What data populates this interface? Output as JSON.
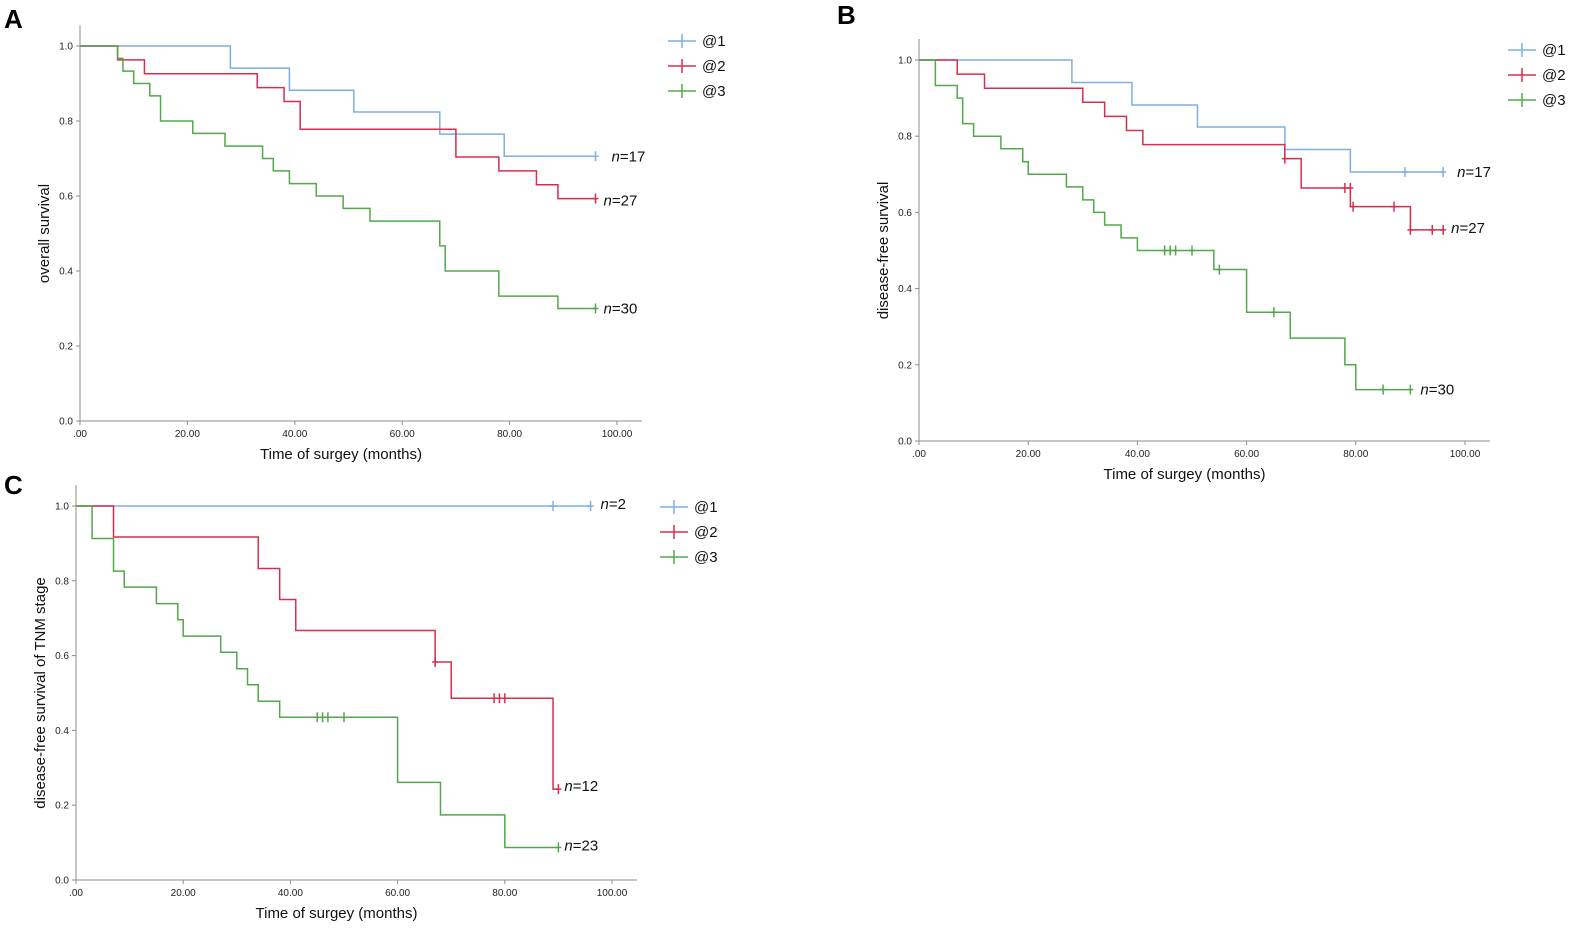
{
  "figure": {
    "colors": {
      "@1": "#7FAEE0",
      "@2": "#D82E4E",
      "@3": "#52A84B",
      "axis": "#8C8C8C"
    },
    "x_tick_labels": [
      ".00",
      "20.00",
      "40.00",
      "60.00",
      "80.00",
      "100.00"
    ],
    "y_tick_labels": [
      "0.0",
      "0.2",
      "0.4",
      "0.6",
      "0.8",
      "1.0"
    ]
  },
  "chart_data": [
    {
      "panel": "A",
      "type": "line",
      "title": "",
      "xlabel": "Time of surgey (months)",
      "ylabel": "overall survival",
      "xlim": [
        0,
        105
      ],
      "ylim": [
        0,
        1.05
      ],
      "legend": [
        "@1",
        "@2",
        "@3"
      ],
      "series": [
        {
          "name": "@1",
          "n_label": "n=17",
          "steps": [
            [
              0,
              1
            ],
            [
              28,
              0.941
            ],
            [
              39,
              0.882
            ],
            [
              51,
              0.824
            ],
            [
              67,
              0.765
            ],
            [
              79,
              0.706
            ],
            [
              96,
              0.706
            ]
          ],
          "censored": [
            [
              96,
              0.706
            ]
          ]
        },
        {
          "name": "@2",
          "n_label": "n=27",
          "steps": [
            [
              0,
              1
            ],
            [
              7,
              0.963
            ],
            [
              12,
              0.926
            ],
            [
              33,
              0.889
            ],
            [
              38,
              0.852
            ],
            [
              41,
              0.778
            ],
            [
              70,
              0.704
            ],
            [
              78,
              0.667
            ],
            [
              85,
              0.63
            ],
            [
              89,
              0.593
            ],
            [
              96,
              0.593
            ]
          ],
          "censored": [
            [
              96,
              0.593
            ]
          ]
        },
        {
          "name": "@3",
          "n_label": "n=30",
          "steps": [
            [
              0,
              1
            ],
            [
              7,
              0.967
            ],
            [
              8,
              0.933
            ],
            [
              10,
              0.9
            ],
            [
              13,
              0.867
            ],
            [
              15,
              0.8
            ],
            [
              21,
              0.767
            ],
            [
              27,
              0.733
            ],
            [
              34,
              0.7
            ],
            [
              36,
              0.667
            ],
            [
              39,
              0.633
            ],
            [
              44,
              0.6
            ],
            [
              49,
              0.567
            ],
            [
              54,
              0.533
            ],
            [
              67,
              0.467
            ],
            [
              68,
              0.4
            ],
            [
              78,
              0.333
            ],
            [
              89,
              0.3
            ],
            [
              96,
              0.3
            ]
          ],
          "censored": [
            [
              96,
              0.3
            ]
          ]
        }
      ]
    },
    {
      "panel": "B",
      "type": "line",
      "title": "",
      "xlabel": "Time of surgey (months)",
      "ylabel": "disease-free survival",
      "xlim": [
        0,
        105
      ],
      "ylim": [
        0,
        1.05
      ],
      "legend": [
        "@1",
        "@2",
        "@3"
      ],
      "series": [
        {
          "name": "@1",
          "n_label": "n=17",
          "steps": [
            [
              0,
              1
            ],
            [
              28,
              0.941
            ],
            [
              39,
              0.882
            ],
            [
              51,
              0.824
            ],
            [
              67,
              0.765
            ],
            [
              79,
              0.706
            ],
            [
              96,
              0.706
            ]
          ],
          "censored": [
            [
              89,
              0.706
            ],
            [
              96,
              0.706
            ]
          ]
        },
        {
          "name": "@2",
          "n_label": "n=27",
          "steps": [
            [
              0,
              1
            ],
            [
              7,
              0.963
            ],
            [
              12,
              0.926
            ],
            [
              30,
              0.889
            ],
            [
              34,
              0.852
            ],
            [
              38,
              0.815
            ],
            [
              41,
              0.778
            ],
            [
              67,
              0.741
            ],
            [
              70,
              0.664
            ],
            [
              79,
              0.615
            ],
            [
              90,
              0.554
            ],
            [
              96,
              0.554
            ]
          ],
          "censored": [
            [
              67,
              0.741
            ],
            [
              78,
              0.664
            ],
            [
              79,
              0.664
            ],
            [
              79.5,
              0.615
            ],
            [
              87,
              0.615
            ],
            [
              90,
              0.554
            ],
            [
              94,
              0.554
            ],
            [
              96,
              0.554
            ]
          ]
        },
        {
          "name": "@3",
          "n_label": "n=30",
          "steps": [
            [
              0,
              1
            ],
            [
              3,
              0.933
            ],
            [
              7,
              0.9
            ],
            [
              8,
              0.833
            ],
            [
              10,
              0.8
            ],
            [
              15,
              0.767
            ],
            [
              19,
              0.733
            ],
            [
              20,
              0.7
            ],
            [
              27,
              0.667
            ],
            [
              30,
              0.633
            ],
            [
              32,
              0.6
            ],
            [
              34,
              0.567
            ],
            [
              37,
              0.533
            ],
            [
              40,
              0.5
            ],
            [
              54,
              0.45
            ],
            [
              60,
              0.338
            ],
            [
              68,
              0.27
            ],
            [
              78,
              0.2
            ],
            [
              80,
              0.135
            ],
            [
              90,
              0.135
            ]
          ],
          "censored": [
            [
              45,
              0.5
            ],
            [
              46,
              0.5
            ],
            [
              47,
              0.5
            ],
            [
              50,
              0.5
            ],
            [
              55,
              0.45
            ],
            [
              65,
              0.338
            ],
            [
              85,
              0.135
            ],
            [
              90,
              0.135
            ]
          ]
        }
      ]
    },
    {
      "panel": "C",
      "type": "line",
      "title": "",
      "xlabel": "Time of surgey (months)",
      "ylabel": "disease-free survival of TNM stage",
      "xlim": [
        0,
        105
      ],
      "ylim": [
        0,
        1.05
      ],
      "legend": [
        "@1",
        "@2",
        "@3"
      ],
      "series": [
        {
          "name": "@1",
          "n_label": "n=2",
          "steps": [
            [
              0,
              1
            ],
            [
              96,
              1
            ]
          ],
          "censored": [
            [
              89,
              1
            ],
            [
              96,
              1
            ]
          ]
        },
        {
          "name": "@2",
          "n_label": "n=12",
          "steps": [
            [
              0,
              1
            ],
            [
              7,
              0.917
            ],
            [
              34,
              0.833
            ],
            [
              38,
              0.75
            ],
            [
              41,
              0.667
            ],
            [
              67,
              0.583
            ],
            [
              70,
              0.486
            ],
            [
              89,
              0.243
            ],
            [
              90,
              0.243
            ]
          ],
          "censored": [
            [
              67,
              0.583
            ],
            [
              78,
              0.486
            ],
            [
              79,
              0.486
            ],
            [
              80,
              0.486
            ],
            [
              90,
              0.243
            ]
          ]
        },
        {
          "name": "@3",
          "n_label": "n=23",
          "steps": [
            [
              0,
              1
            ],
            [
              3,
              0.913
            ],
            [
              7,
              0.826
            ],
            [
              9,
              0.783
            ],
            [
              15,
              0.739
            ],
            [
              19,
              0.696
            ],
            [
              20,
              0.652
            ],
            [
              27,
              0.609
            ],
            [
              30,
              0.565
            ],
            [
              32,
              0.522
            ],
            [
              34,
              0.478
            ],
            [
              38,
              0.435
            ],
            [
              60,
              0.261
            ],
            [
              68,
              0.174
            ],
            [
              80,
              0.087
            ],
            [
              90,
              0.087
            ]
          ],
          "censored": [
            [
              45,
              0.435
            ],
            [
              46,
              0.435
            ],
            [
              47,
              0.435
            ],
            [
              50,
              0.435
            ],
            [
              90,
              0.087
            ]
          ]
        }
      ]
    }
  ]
}
